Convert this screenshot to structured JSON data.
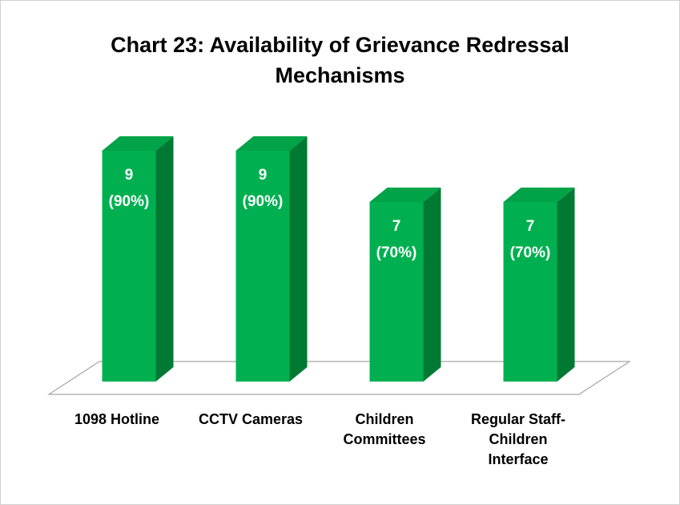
{
  "chart_data": {
    "type": "bar3d",
    "title": "Chart 23: Availability of Grievance Redressal Mechanisms",
    "categories": [
      "1098 Hotline",
      "CCTV Cameras",
      "Children Committees",
      "Regular Staff-Children Interface"
    ],
    "values": [
      9,
      9,
      7,
      7
    ],
    "value_labels": [
      "9 (90%)",
      "9 (90%)",
      "7 (70%)",
      "7 (70%)"
    ],
    "color": "#00b050"
  }
}
